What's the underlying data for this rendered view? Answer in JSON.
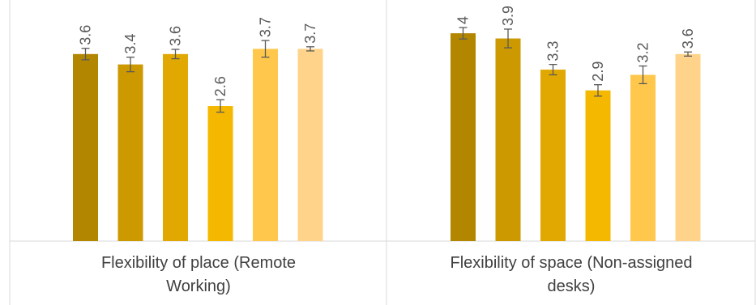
{
  "chart_data": {
    "type": "bar",
    "categories": [
      [
        "Flexibility of place (Remote",
        "Working)"
      ],
      [
        "Flexibility of space (Non-assigned",
        "desks)"
      ]
    ],
    "ylim": [
      0,
      4.5
    ],
    "grid": false,
    "legend": "none",
    "series_colors": [
      "#b38600",
      "#cc9900",
      "#e0a800",
      "#f5b800",
      "#ffc84c",
      "#ffd48a"
    ],
    "groups": [
      {
        "values": [
          3.6,
          3.4,
          3.6,
          2.6,
          3.7,
          3.7
        ],
        "labels": [
          "3.6",
          "3.4",
          "3.6",
          "2.6",
          "3.7",
          "3.7"
        ],
        "errors": [
          0.11,
          0.14,
          0.09,
          0.12,
          0.16,
          0.04
        ]
      },
      {
        "values": [
          4.0,
          3.9,
          3.3,
          2.9,
          3.2,
          3.6
        ],
        "labels": [
          "4",
          "3.9",
          "3.3",
          "2.9",
          "3.2",
          "3.6"
        ],
        "errors": [
          0.11,
          0.18,
          0.1,
          0.11,
          0.17,
          0.04
        ]
      }
    ]
  }
}
